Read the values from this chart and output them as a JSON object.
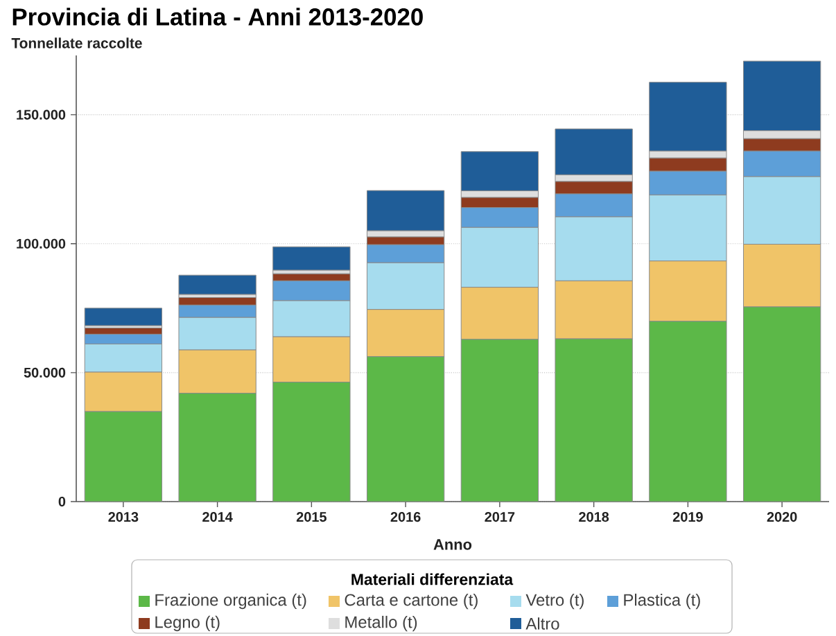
{
  "chart_data": {
    "type": "bar",
    "stacked": true,
    "title": "Provincia di Latina - Anni 2013-2020",
    "ylabel": "Tonnellate raccolte",
    "xlabel": "Anno",
    "legend_title": "Materiali differenziata",
    "categories": [
      "2013",
      "2014",
      "2015",
      "2016",
      "2017",
      "2018",
      "2019",
      "2020"
    ],
    "series": [
      {
        "name": "Frazione organica (t)",
        "color": "#5cb848",
        "values": [
          34900,
          42000,
          46300,
          56200,
          62900,
          63100,
          69900,
          75500
        ]
      },
      {
        "name": "Carta e cartone (t)",
        "color": "#f0c468",
        "values": [
          15300,
          16800,
          17600,
          18300,
          20200,
          22500,
          23400,
          24300
        ]
      },
      {
        "name": "Vetro (t)",
        "color": "#a6dcee",
        "values": [
          10900,
          12600,
          14000,
          18100,
          23200,
          24800,
          25600,
          26200
        ]
      },
      {
        "name": "Plastica (t)",
        "color": "#5d9fd8",
        "values": [
          3800,
          4800,
          7700,
          7000,
          7700,
          8900,
          9200,
          9900
        ]
      },
      {
        "name": "Legno (t)",
        "color": "#8e3b1f",
        "values": [
          2400,
          2900,
          2700,
          3000,
          3900,
          4800,
          5100,
          4800
        ]
      },
      {
        "name": "Metallo (t)",
        "color": "#dedede",
        "values": [
          900,
          1200,
          1400,
          2400,
          2600,
          2600,
          2700,
          3100
        ]
      },
      {
        "name": "Altro",
        "color": "#1f5d98",
        "values": [
          6800,
          7500,
          9100,
          15600,
          15200,
          17800,
          26700,
          27000
        ]
      }
    ],
    "ylim": [
      0,
      173000
    ],
    "yticks": [
      0,
      {
        "value": 50000,
        "label": "50.000"
      },
      {
        "value": 100000,
        "label": "100.000"
      },
      {
        "value": 150000,
        "label": "150.000"
      }
    ],
    "grid": "y",
    "legend": "bottom"
  }
}
